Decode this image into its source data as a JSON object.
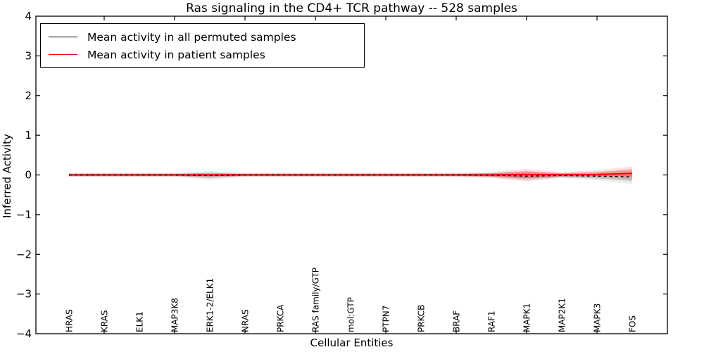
{
  "title": "Ras signaling in the CD4+ TCR pathway -- 528 samples",
  "axes": {
    "x_label": "Cellular Entities",
    "y_label": "Inferred Activity",
    "y_tick_labels": [
      "4",
      "3",
      "2",
      "1",
      "0",
      "−1",
      "−2",
      "−3",
      "−4"
    ],
    "y_tick_values": [
      4,
      3,
      2,
      1,
      0,
      -1,
      -2,
      -3,
      -4
    ]
  },
  "legend": {
    "items": [
      {
        "label": "Mean activity in all permuted samples",
        "color": "#000000"
      },
      {
        "label": "Mean activity in patient samples",
        "color": "#ff0000"
      }
    ]
  },
  "colors": {
    "frame": "#000000",
    "background": "#ffffff",
    "permuted_line": "#000000",
    "patient_line": "#ff0000",
    "permuted_band": "#000000",
    "patient_band": "#ff0000"
  },
  "chart_data": {
    "type": "line",
    "title": "Ras signaling in the CD4+ TCR pathway -- 528 samples",
    "xlabel": "Cellular Entities",
    "ylabel": "Inferred Activity",
    "ylim": [
      -4,
      4
    ],
    "grid": false,
    "legend_position": "upper left",
    "categories": [
      "HRAS",
      "KRAS",
      "ELK1",
      "MAP3K8",
      "ERK1-2/ELK1",
      "NRAS",
      "PRKCA",
      "RAS family/GTP",
      "mol:GTP",
      "PTPN7",
      "PRKCB",
      "BRAF",
      "RAF1",
      "MAPK1",
      "MAP2K1",
      "MAPK3",
      "FOS"
    ],
    "series": [
      {
        "name": "Mean activity in all permuted samples",
        "color": "#000000",
        "line_style": "dashed",
        "values": [
          0,
          0,
          0,
          0,
          -0.015,
          0,
          0,
          0,
          0,
          0,
          0,
          0,
          -0.005,
          -0.03,
          -0.015,
          -0.03,
          -0.05
        ],
        "band_upper": [
          0.02,
          0.02,
          0.02,
          0.02,
          0.05,
          0.02,
          0.02,
          0.02,
          0.02,
          0.02,
          0.02,
          0.02,
          0.03,
          0.04,
          0.02,
          0.02,
          0.01
        ],
        "band_lower": [
          -0.02,
          -0.02,
          -0.02,
          -0.02,
          -0.08,
          -0.02,
          -0.02,
          -0.02,
          -0.02,
          -0.02,
          -0.02,
          -0.02,
          -0.04,
          -0.1,
          -0.05,
          -0.09,
          -0.15
        ]
      },
      {
        "name": "Mean activity in patient samples",
        "color": "#ff0000",
        "line_style": "solid",
        "values": [
          0,
          0,
          0,
          0,
          0,
          0,
          0,
          0,
          0,
          0,
          0,
          0,
          0,
          0.01,
          0.005,
          0.01,
          0.04
        ],
        "band_upper": [
          0.03,
          0.03,
          0.03,
          0.03,
          0.03,
          0.03,
          0.03,
          0.03,
          0.03,
          0.03,
          0.03,
          0.03,
          0.04,
          0.09,
          0.04,
          0.07,
          0.14
        ],
        "band_lower": [
          -0.03,
          -0.03,
          -0.03,
          -0.03,
          -0.03,
          -0.03,
          -0.03,
          -0.03,
          -0.03,
          -0.03,
          -0.03,
          -0.03,
          -0.04,
          -0.08,
          -0.03,
          -0.03,
          -0.04
        ]
      }
    ]
  }
}
